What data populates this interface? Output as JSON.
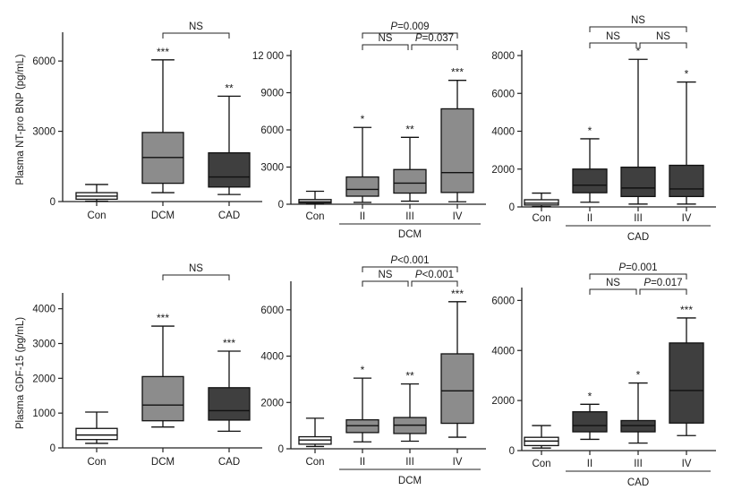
{
  "chart_data": [
    {
      "type": "box",
      "ylabel": "Plasma NT-pro BNP (pg/mL)",
      "ylim": [
        0,
        7000
      ],
      "yticks": [
        0,
        3000,
        6000
      ],
      "ytick_labels": [
        "0",
        "3000",
        "6000"
      ],
      "xgroup_label": "",
      "colors": [
        "#ffffff",
        "#8c8c8c",
        "#3f3f3f"
      ],
      "boxes": [
        {
          "category": "Con",
          "min": 20,
          "q1": 100,
          "median": 230,
          "q3": 380,
          "max": 730,
          "sig": ""
        },
        {
          "category": "DCM",
          "min": 380,
          "q1": 780,
          "median": 1880,
          "q3": 2950,
          "max": 6050,
          "sig": "***"
        },
        {
          "category": "CAD",
          "min": 300,
          "q1": 620,
          "median": 1050,
          "q3": 2080,
          "max": 4500,
          "sig": "**"
        }
      ],
      "comparisons": [
        {
          "from": 1,
          "to": 2,
          "label": "NS"
        }
      ]
    },
    {
      "type": "box",
      "ylabel": "",
      "ylim": [
        0,
        12000
      ],
      "yticks": [
        0,
        3000,
        6000,
        9000,
        12000
      ],
      "ytick_labels": [
        "0",
        "3000",
        "6000",
        "9000",
        "12 000"
      ],
      "xgroup_label": "DCM",
      "colors": [
        "#ffffff",
        "#8c8c8c",
        "#8c8c8c",
        "#8c8c8c"
      ],
      "boxes": [
        {
          "category": "Con",
          "min": 20,
          "q1": 100,
          "median": 200,
          "q3": 380,
          "max": 1050,
          "sig": ""
        },
        {
          "category": "II",
          "min": 150,
          "q1": 650,
          "median": 1200,
          "q3": 2200,
          "max": 6200,
          "sig": "*"
        },
        {
          "category": "III",
          "min": 250,
          "q1": 900,
          "median": 1700,
          "q3": 2800,
          "max": 5400,
          "sig": "**"
        },
        {
          "category": "IV",
          "min": 200,
          "q1": 950,
          "median": 2550,
          "q3": 7700,
          "max": 10000,
          "sig": "***"
        }
      ],
      "comparisons": [
        {
          "from": 1,
          "to": 3,
          "label": "P=0.009"
        },
        {
          "from": 1,
          "to": 2,
          "label": "NS"
        },
        {
          "from": 2,
          "to": 3,
          "label": "P=0.037"
        }
      ]
    },
    {
      "type": "box",
      "ylabel": "",
      "ylim": [
        0,
        8000
      ],
      "yticks": [
        0,
        2000,
        4000,
        6000,
        8000
      ],
      "ytick_labels": [
        "0",
        "2000",
        "4000",
        "6000",
        "8000"
      ],
      "xgroup_label": "CAD",
      "colors": [
        "#ffffff",
        "#3f3f3f",
        "#3f3f3f",
        "#3f3f3f"
      ],
      "boxes": [
        {
          "category": "Con",
          "min": 20,
          "q1": 100,
          "median": 200,
          "q3": 380,
          "max": 730,
          "sig": ""
        },
        {
          "category": "II",
          "min": 250,
          "q1": 750,
          "median": 1150,
          "q3": 2000,
          "max": 3600,
          "sig": "*"
        },
        {
          "category": "III",
          "min": 150,
          "q1": 550,
          "median": 1000,
          "q3": 2100,
          "max": 7800,
          "sig": "*"
        },
        {
          "category": "IV",
          "min": 150,
          "q1": 550,
          "median": 950,
          "q3": 2200,
          "max": 6600,
          "sig": "*"
        }
      ],
      "comparisons": [
        {
          "from": 1,
          "to": 3,
          "label": "NS"
        },
        {
          "from": 1,
          "to": 2,
          "label": "NS"
        },
        {
          "from": 2,
          "to": 3,
          "label": "NS"
        }
      ]
    },
    {
      "type": "box",
      "ylabel": "Plasma GDF-15 (pg/mL)",
      "ylim": [
        0,
        4300
      ],
      "yticks": [
        0,
        1000,
        2000,
        3000,
        4000
      ],
      "ytick_labels": [
        "0",
        "1000",
        "2000",
        "3000",
        "4000"
      ],
      "xgroup_label": "",
      "colors": [
        "#ffffff",
        "#8c8c8c",
        "#3f3f3f"
      ],
      "boxes": [
        {
          "category": "Con",
          "min": 130,
          "q1": 240,
          "median": 370,
          "q3": 560,
          "max": 1030,
          "sig": ""
        },
        {
          "category": "DCM",
          "min": 600,
          "q1": 780,
          "median": 1230,
          "q3": 2050,
          "max": 3500,
          "sig": "***"
        },
        {
          "category": "CAD",
          "min": 480,
          "q1": 800,
          "median": 1070,
          "q3": 1730,
          "max": 2780,
          "sig": "***"
        }
      ],
      "comparisons": [
        {
          "from": 1,
          "to": 2,
          "label": "NS"
        }
      ]
    },
    {
      "type": "box",
      "ylabel": "",
      "ylim": [
        0,
        7000
      ],
      "yticks": [
        0,
        2000,
        4000,
        6000
      ],
      "ytick_labels": [
        "0",
        "2000",
        "4000",
        "6000"
      ],
      "xgroup_label": "DCM",
      "colors": [
        "#ffffff",
        "#8c8c8c",
        "#8c8c8c",
        "#8c8c8c"
      ],
      "boxes": [
        {
          "category": "Con",
          "min": 100,
          "q1": 200,
          "median": 380,
          "q3": 520,
          "max": 1320,
          "sig": ""
        },
        {
          "category": "II",
          "min": 300,
          "q1": 700,
          "median": 1000,
          "q3": 1250,
          "max": 3050,
          "sig": "*"
        },
        {
          "category": "III",
          "min": 330,
          "q1": 660,
          "median": 1020,
          "q3": 1350,
          "max": 2800,
          "sig": "**"
        },
        {
          "category": "IV",
          "min": 500,
          "q1": 1100,
          "median": 2500,
          "q3": 4100,
          "max": 6350,
          "sig": "***"
        }
      ],
      "comparisons": [
        {
          "from": 1,
          "to": 3,
          "label": "P<0.001"
        },
        {
          "from": 1,
          "to": 2,
          "label": "NS"
        },
        {
          "from": 2,
          "to": 3,
          "label": "P<0.001"
        }
      ]
    },
    {
      "type": "box",
      "ylabel": "",
      "ylim": [
        0,
        6300
      ],
      "yticks": [
        0,
        2000,
        4000,
        6000
      ],
      "ytick_labels": [
        "0",
        "2000",
        "4000",
        "6000"
      ],
      "xgroup_label": "CAD",
      "colors": [
        "#ffffff",
        "#3f3f3f",
        "#3f3f3f",
        "#3f3f3f"
      ],
      "boxes": [
        {
          "category": "Con",
          "min": 100,
          "q1": 200,
          "median": 380,
          "q3": 530,
          "max": 1000,
          "sig": ""
        },
        {
          "category": "II",
          "min": 450,
          "q1": 750,
          "median": 1000,
          "q3": 1550,
          "max": 1850,
          "sig": "*"
        },
        {
          "category": "III",
          "min": 300,
          "q1": 750,
          "median": 1000,
          "q3": 1200,
          "max": 2700,
          "sig": "*"
        },
        {
          "category": "IV",
          "min": 600,
          "q1": 1100,
          "median": 2400,
          "q3": 4300,
          "max": 5300,
          "sig": "***"
        }
      ],
      "comparisons": [
        {
          "from": 1,
          "to": 3,
          "label": "P=0.001"
        },
        {
          "from": 1,
          "to": 2,
          "label": "NS"
        },
        {
          "from": 2,
          "to": 3,
          "label": "P=0.017"
        }
      ]
    }
  ]
}
